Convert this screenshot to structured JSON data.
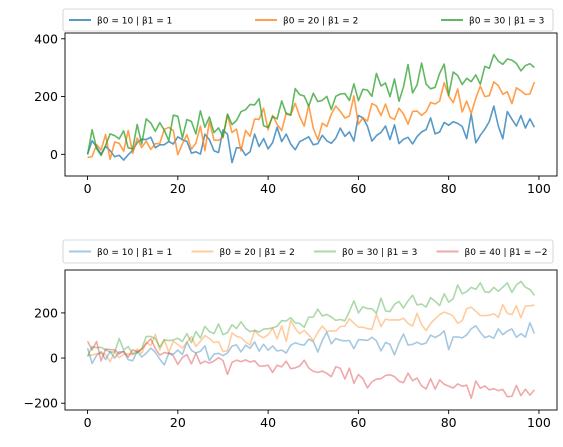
{
  "chart_data": [
    {
      "type": "line",
      "title": "",
      "xlabel": "",
      "ylabel": "",
      "xlim": [
        -5,
        104
      ],
      "ylim": [
        -75,
        420
      ],
      "xticks": [
        0,
        20,
        40,
        60,
        80,
        100
      ],
      "yticks": [
        0,
        200,
        400
      ],
      "xtick_labels": [
        "0",
        "20",
        "40",
        "60",
        "80",
        "100"
      ],
      "ytick_labels": [
        "0",
        "200",
        "400"
      ],
      "grid": false,
      "legend_position": "above",
      "line_opacity": 0.75,
      "series": [
        {
          "name": "β0 = 10 | β1 = 1",
          "color": "#1f77b4",
          "intercept": 10,
          "slope": 1,
          "noise": 28,
          "seed": 11
        },
        {
          "name": "β0 = 20 | β1 = 2",
          "color": "#ff7f0e",
          "intercept": 20,
          "slope": 2,
          "noise": 28,
          "seed": 23
        },
        {
          "name": "β0 = 30 | β1 = 3",
          "color": "#2ca02c",
          "intercept": 30,
          "slope": 3,
          "noise": 28,
          "seed": 37
        }
      ]
    },
    {
      "type": "line",
      "title": "",
      "xlabel": "",
      "ylabel": "",
      "xlim": [
        -5,
        104
      ],
      "ylim": [
        -230,
        390
      ],
      "xticks": [
        0,
        20,
        40,
        60,
        80,
        100
      ],
      "yticks": [
        -200,
        0,
        200
      ],
      "xtick_labels": [
        "0",
        "20",
        "40",
        "60",
        "80",
        "100"
      ],
      "ytick_labels": [
        "−200",
        "0",
        "200"
      ],
      "grid": false,
      "legend_position": "above",
      "line_opacity": 0.4,
      "series": [
        {
          "name": "β0 = 10 | β1 = 1",
          "color": "#1f77b4",
          "intercept": 10,
          "slope": 1,
          "noise": 24,
          "seed": 53
        },
        {
          "name": "β0 = 20 | β1 = 2",
          "color": "#ff7f0e",
          "intercept": 20,
          "slope": 2,
          "noise": 24,
          "seed": 71
        },
        {
          "name": "β0 = 30 | β1 = 3",
          "color": "#2ca02c",
          "intercept": 30,
          "slope": 3,
          "noise": 24,
          "seed": 89
        },
        {
          "name": "β0 = 40 | β1 = −2",
          "color": "#d62728",
          "intercept": 40,
          "slope": -2,
          "noise": 24,
          "seed": 97
        }
      ]
    }
  ]
}
